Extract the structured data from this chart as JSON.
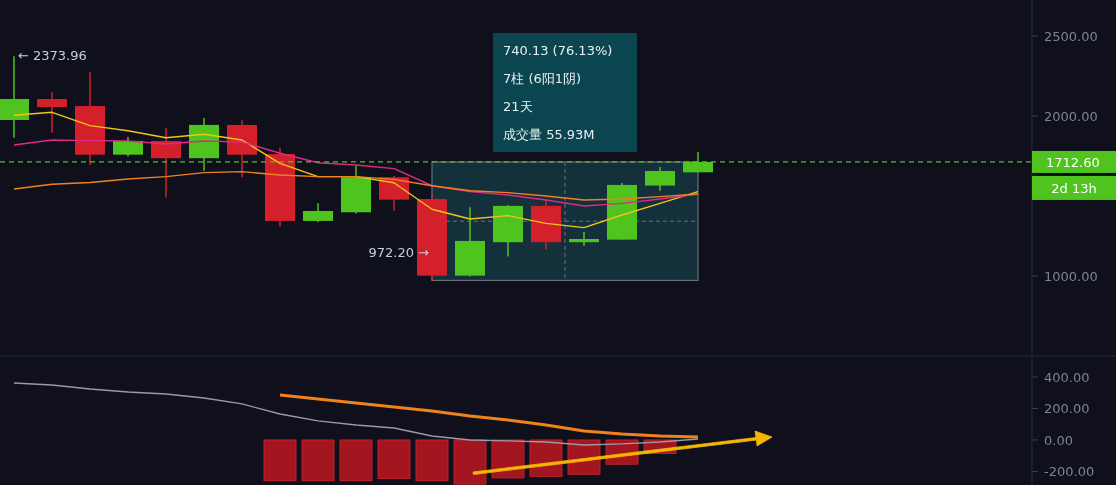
{
  "chart_data": [
    {
      "type": "candlestick",
      "categories": [
        null,
        null,
        null,
        null,
        null,
        null,
        null,
        null,
        null,
        null,
        null,
        null,
        null,
        null,
        null,
        null,
        null,
        null,
        null
      ],
      "ohlc": [
        [
          1975,
          2373.96,
          1864,
          2106
        ],
        [
          2106,
          2148,
          1896,
          2056
        ],
        [
          2062,
          2277,
          1694,
          1758
        ],
        [
          1758,
          1869,
          1746,
          1844
        ],
        [
          1844,
          1923,
          1490,
          1736
        ],
        [
          1736,
          1988,
          1658,
          1944
        ],
        [
          1944,
          1973,
          1617,
          1758
        ],
        [
          1762,
          1802,
          1308,
          1344
        ],
        [
          1344,
          1454,
          1337,
          1406
        ],
        [
          1398,
          1688,
          1390,
          1617
        ],
        [
          1617,
          1625,
          1408,
          1477
        ],
        [
          1481,
          1510,
          972.2,
          1002
        ],
        [
          1002,
          1430,
          996,
          1219
        ],
        [
          1211,
          1444,
          1121,
          1438
        ],
        [
          1438,
          1475,
          1167,
          1211
        ],
        [
          1211,
          1275,
          1187,
          1231
        ],
        [
          1227,
          1581,
          1227,
          1569
        ],
        [
          1565,
          1681,
          1533,
          1656
        ],
        [
          1648,
          1775,
          1648,
          1712.6
        ]
      ],
      "colors": [
        "#4fc41f",
        "#d3202b",
        "#d3202b",
        "#4fc41f",
        "#d3202b",
        "#4fc41f",
        "#d3202b",
        "#d3202b",
        "#4fc41f",
        "#4fc41f",
        "#d3202b",
        "#d3202b",
        "#4fc41f",
        "#4fc41f",
        "#d3202b",
        "#4fc41f",
        "#4fc41f",
        "#4fc41f",
        "#4fc41f"
      ],
      "series": [
        {
          "type": "line",
          "color": "#f0c419",
          "values": [
            2005,
            2023,
            1940,
            1908,
            1864,
            1886,
            1850,
            1704,
            1621,
            1621,
            1583,
            1417,
            1356,
            1377,
            1329,
            1302,
            1381,
            1454,
            1527
          ]
        },
        {
          "type": "line",
          "color": "#e0288a",
          "values": [
            1819,
            1850,
            1846,
            1844,
            1825,
            1844,
            1837,
            1767,
            1708,
            1694,
            1671,
            1564,
            1527,
            1506,
            1475,
            1437,
            1454,
            1481,
            1512
          ]
        },
        {
          "type": "line",
          "color": "#f0821e",
          "values": [
            1544,
            1573,
            1584,
            1606,
            1621,
            1646,
            1652,
            1631,
            1621,
            1621,
            1604,
            1564,
            1533,
            1521,
            1500,
            1475,
            1481,
            1496,
            1512
          ]
        }
      ],
      "ylim": [
        506,
        2725
      ],
      "yticks": [
        {
          "value": 1000,
          "label": "1000.00"
        },
        {
          "value": 2000,
          "label": "2000.00"
        },
        {
          "value": 2500,
          "label": "2500.00"
        }
      ],
      "tick_labels": "y",
      "grid": false,
      "ref_lines": [
        {
          "axis": "y",
          "value": 1712.6,
          "label": "1712.60",
          "color": "#4fc41f",
          "line_style": "dashed"
        }
      ],
      "annotations": [
        "← 2373.96",
        "972.20 →",
        "740.13 (76.13%)",
        "7柱 (6阳1阴)",
        "21天",
        "成交量 55.93M",
        "2d 13h"
      ]
    },
    {
      "type": "bar",
      "categories": [
        null,
        null,
        null,
        null,
        null,
        null,
        null,
        null,
        null,
        null,
        null,
        null,
        null,
        null,
        null,
        null,
        null,
        null,
        null
      ],
      "series": [
        {
          "type": "bar",
          "color": "#a3161f",
          "values": [
            null,
            null,
            null,
            null,
            null,
            null,
            null,
            -259,
            -259,
            -259,
            -245,
            -259,
            -280,
            -241,
            -231,
            -218,
            -154,
            -86,
            null
          ]
        },
        {
          "type": "line",
          "color": "#9a9aa6",
          "values": [
            362,
            349,
            324,
            305,
            292,
            267,
            229,
            165,
            121,
            95,
            76,
            25,
            0,
            -6,
            -13,
            -32,
            -25,
            -13,
            6
          ]
        },
        {
          "type": "line",
          "color": "#f0821e",
          "values": [
            null,
            null,
            null,
            null,
            null,
            null,
            null,
            286,
            260,
            235,
            210,
            184,
            152,
            127,
            95,
            57,
            38,
            25,
            19
          ]
        }
      ],
      "ylim": [
        -286,
        527
      ],
      "yticks": [
        {
          "value": 400,
          "label": "400.00"
        },
        {
          "value": 200,
          "label": "200.00"
        },
        {
          "value": 0,
          "label": "0.00"
        },
        {
          "value": -200,
          "label": "-200.00"
        }
      ],
      "tick_labels": "y",
      "grid": false
    }
  ]
}
